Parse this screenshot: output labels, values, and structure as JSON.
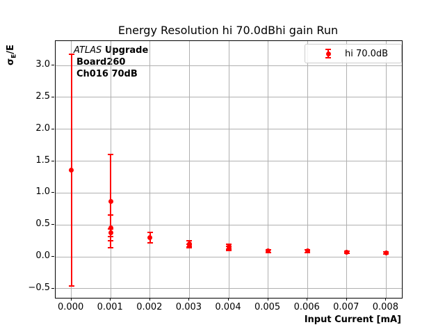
{
  "title": "Energy Resolution hi 70.0dBhi gain Run",
  "annotation": {
    "line1_italic": "ATLAS",
    "line1_bold": "Upgrade",
    "line2": "Board260",
    "line3": "Ch016 70dB"
  },
  "legend": {
    "label": "hi 70.0dB"
  },
  "ylabel_parts": {
    "sigma": "σ",
    "sub": "E",
    "rest": "/E"
  },
  "colors": {
    "series": "#ff0000",
    "grid": "#b0b0b0",
    "spine": "#000000",
    "legend_border": "#cccccc"
  },
  "chart_data": {
    "type": "scatter",
    "title": "Energy Resolution hi 70.0dBhi gain Run",
    "xlabel": "Input Current [mA]",
    "ylabel": "σE/E",
    "xlim": [
      -0.0004,
      0.0084
    ],
    "ylim": [
      -0.643,
      3.383
    ],
    "xticks": [
      0.0,
      0.001,
      0.002,
      0.003,
      0.004,
      0.005,
      0.006,
      0.007,
      0.008
    ],
    "yticks": [
      -0.5,
      0.0,
      0.5,
      1.0,
      1.5,
      2.0,
      2.5,
      3.0
    ],
    "xtick_decimals": 3,
    "ytick_decimals": 1,
    "grid": true,
    "legend_position": "upper right",
    "series": [
      {
        "name": "hi 70.0dB",
        "color": "#ff0000",
        "marker": "circle-errorbar",
        "points": [
          {
            "x": 0.0,
            "y": 1.36,
            "yerr": 1.82
          },
          {
            "x": 0.001,
            "y": 0.87,
            "yerr": 0.73
          },
          {
            "x": 0.001,
            "y": 0.45,
            "yerr": 0.2
          },
          {
            "x": 0.001,
            "y": 0.38,
            "yerr": 0.06
          },
          {
            "x": 0.002,
            "y": 0.3,
            "yerr": 0.08
          },
          {
            "x": 0.003,
            "y": 0.2,
            "yerr": 0.05
          },
          {
            "x": 0.003,
            "y": 0.17,
            "yerr": 0.03
          },
          {
            "x": 0.004,
            "y": 0.16,
            "yerr": 0.04
          },
          {
            "x": 0.004,
            "y": 0.13,
            "yerr": 0.03
          },
          {
            "x": 0.005,
            "y": 0.09,
            "yerr": 0.02
          },
          {
            "x": 0.006,
            "y": 0.09,
            "yerr": 0.02
          },
          {
            "x": 0.007,
            "y": 0.07,
            "yerr": 0.02
          },
          {
            "x": 0.008,
            "y": 0.06,
            "yerr": 0.02
          }
        ]
      }
    ]
  }
}
